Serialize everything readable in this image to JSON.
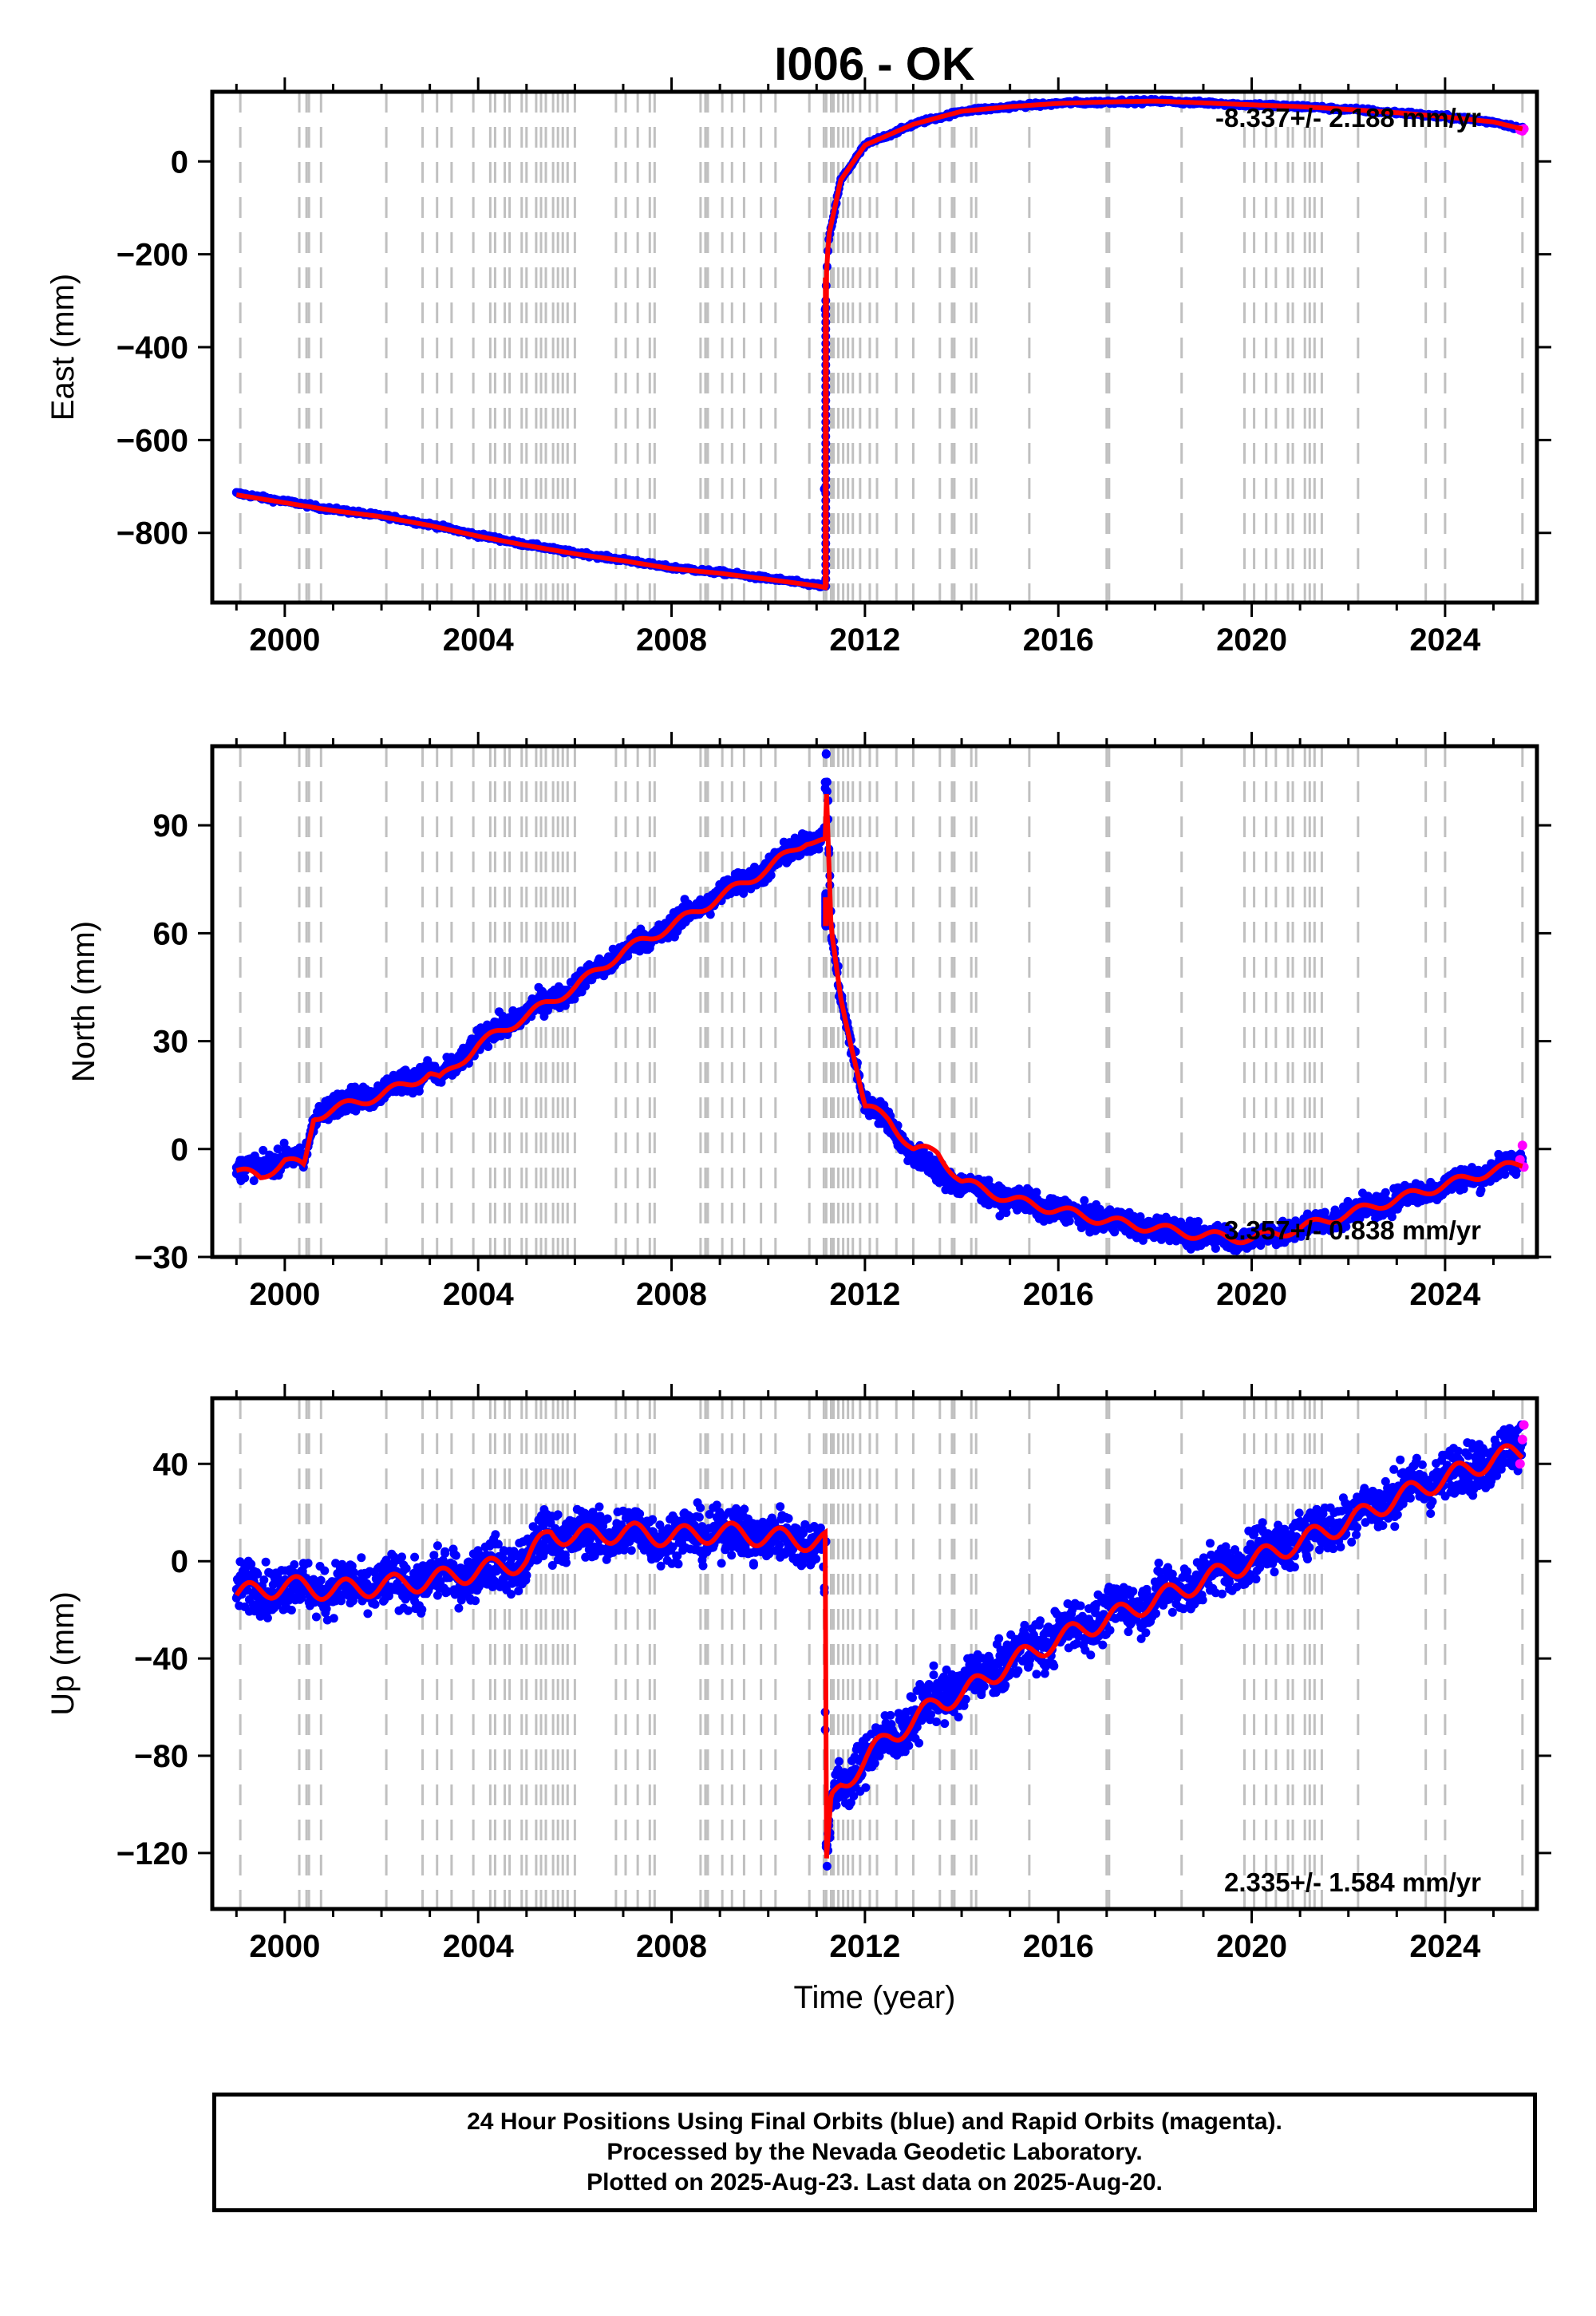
{
  "title": "I006 - OK",
  "xlabel": "Time (year)",
  "colors": {
    "final_orbits": "#0000ff",
    "rapid_orbits": "#ff00ff",
    "model": "#ff0000",
    "event_lines": "#c0c0c0",
    "frame": "#000000"
  },
  "chart_data": [
    {
      "type": "scatter",
      "component": "east",
      "ylabel": "East (mm)",
      "xlim": [
        1998.5,
        2025.9
      ],
      "ylim": [
        -950,
        150
      ],
      "xticks": [
        2000,
        2004,
        2008,
        2012,
        2016,
        2020,
        2024
      ],
      "yticks": [
        -800,
        -600,
        -400,
        -200,
        0
      ],
      "grid": false,
      "rate_label": "-8.337+/- 2.188 mm/yr",
      "rate_label_position": "top-right",
      "series": [
        {
          "role": "final-orbits",
          "color": "#0000ff",
          "x": [
            1999.0,
            2000.0,
            2001.0,
            2002.0,
            2003.0,
            2004.0,
            2005.0,
            2006.0,
            2007.0,
            2008.0,
            2009.0,
            2010.0,
            2011.0,
            2011.15,
            2011.18,
            2011.25,
            2011.5,
            2012.0,
            2013.0,
            2014.0,
            2015.0,
            2016.0,
            2017.0,
            2018.0,
            2019.0,
            2020.0,
            2021.0,
            2022.0,
            2023.0,
            2024.0,
            2025.0,
            2025.6
          ],
          "y": [
            -715,
            -732,
            -750,
            -763,
            -782,
            -805,
            -825,
            -843,
            -858,
            -875,
            -885,
            -898,
            -912,
            -915,
            -300,
            -170,
            -40,
            35,
            80,
            108,
            118,
            125,
            128,
            130,
            126,
            122,
            118,
            112,
            105,
            96,
            85,
            70
          ]
        },
        {
          "role": "rapid-orbits",
          "color": "#ff00ff",
          "x": [
            2025.55,
            2025.6,
            2025.63
          ],
          "y": [
            68,
            66,
            70
          ]
        },
        {
          "role": "model",
          "color": "#ff0000",
          "x": [
            1999.0,
            2000.0,
            2001.0,
            2002.0,
            2003.0,
            2004.0,
            2005.0,
            2006.0,
            2007.0,
            2008.0,
            2009.0,
            2010.0,
            2011.0,
            2011.19,
            2011.2,
            2011.25,
            2011.5,
            2012.0,
            2013.0,
            2014.0,
            2015.0,
            2016.0,
            2017.0,
            2018.0,
            2019.0,
            2020.0,
            2021.0,
            2022.0,
            2023.0,
            2024.0,
            2025.0,
            2025.6
          ],
          "y": [
            -718,
            -735,
            -752,
            -765,
            -784,
            -807,
            -827,
            -845,
            -860,
            -877,
            -887,
            -900,
            -914,
            -918,
            -250,
            -160,
            -40,
            35,
            80,
            108,
            118,
            125,
            128,
            130,
            126,
            122,
            118,
            112,
            105,
            96,
            85,
            70
          ]
        }
      ]
    },
    {
      "type": "scatter",
      "component": "north",
      "ylabel": "North (mm)",
      "xlim": [
        1998.5,
        2025.9
      ],
      "ylim": [
        -30,
        112
      ],
      "xticks": [
        2000,
        2004,
        2008,
        2012,
        2016,
        2020,
        2024
      ],
      "yticks": [
        -30,
        0,
        30,
        60,
        90
      ],
      "grid": false,
      "rate_label": "3.357+/- 0.838 mm/yr",
      "rate_label_position": "bottom-right",
      "series": [
        {
          "role": "final-orbits",
          "color": "#0000ff",
          "x": [
            1999.0,
            1999.5,
            2000.0,
            2000.4,
            2000.6,
            2001.0,
            2002.0,
            2003.0,
            2003.2,
            2004.0,
            2005.0,
            2006.0,
            2007.0,
            2008.0,
            2009.0,
            2010.0,
            2010.8,
            2011.15,
            2011.2,
            2011.3,
            2011.5,
            2011.8,
            2012.0,
            2012.5,
            2013.0,
            2014.0,
            2015.0,
            2016.0,
            2017.0,
            2018.0,
            2019.0,
            2020.0,
            2021.0,
            2022.0,
            2023.0,
            2024.0,
            2025.0,
            2025.6
          ],
          "y": [
            -6,
            -5,
            -2,
            -4,
            9,
            12,
            16,
            22,
            19,
            30,
            38,
            45,
            55,
            62,
            71,
            78,
            86,
            86,
            110,
            60,
            42,
            25,
            12,
            8,
            -2,
            -10,
            -14,
            -17,
            -20,
            -22,
            -24,
            -25,
            -22,
            -18,
            -14,
            -10,
            -6,
            -3
          ]
        },
        {
          "role": "rapid-orbits",
          "color": "#ff00ff",
          "x": [
            2025.55,
            2025.6,
            2025.63
          ],
          "y": [
            -3,
            1,
            -5
          ]
        },
        {
          "role": "model",
          "color": "#ff0000",
          "x": [
            1999.0,
            1999.5,
            2000.0,
            2000.4,
            2000.6,
            2001.0,
            2002.0,
            2003.0,
            2003.2,
            2004.0,
            2005.0,
            2006.0,
            2007.0,
            2008.0,
            2009.0,
            2010.0,
            2010.8,
            2011.19,
            2011.2,
            2011.3,
            2011.5,
            2011.8,
            2012.0,
            2012.5,
            2013.0,
            2013.5,
            2014.0,
            2015.0,
            2016.0,
            2017.0,
            2018.0,
            2019.0,
            2020.0,
            2021.0,
            2022.0,
            2023.0,
            2024.0,
            2025.0,
            2025.6
          ],
          "y": [
            -6,
            -8,
            -3,
            -5,
            9,
            11,
            15,
            21,
            19,
            29,
            37,
            45,
            55,
            62,
            70,
            78,
            86,
            85,
            100,
            60,
            42,
            25,
            12,
            8,
            0,
            -1,
            -9,
            -14,
            -17,
            -20,
            -22,
            -24,
            -25,
            -22,
            -18,
            -14,
            -10,
            -6,
            -4
          ]
        }
      ]
    },
    {
      "type": "scatter",
      "component": "up",
      "ylabel": "Up (mm)",
      "xlim": [
        1998.5,
        2025.9
      ],
      "ylim": [
        -143,
        67
      ],
      "xticks": [
        2000,
        2004,
        2008,
        2012,
        2016,
        2020,
        2024
      ],
      "yticks": [
        -120,
        -80,
        -40,
        0,
        40
      ],
      "grid": false,
      "rate_label": "2.335+/- 1.584 mm/yr",
      "rate_label_position": "bottom-right",
      "series": [
        {
          "role": "final-orbits",
          "color": "#0000ff",
          "x": [
            1999.0,
            2000.0,
            2001.0,
            2002.0,
            2003.0,
            2004.0,
            2005.0,
            2005.5,
            2006.0,
            2007.0,
            2008.0,
            2009.0,
            2010.0,
            2011.0,
            2011.15,
            2011.2,
            2011.3,
            2011.5,
            2012.0,
            2012.5,
            2013.0,
            2013.5,
            2014.0,
            2015.0,
            2016.0,
            2017.0,
            2018.0,
            2019.0,
            2020.0,
            2021.0,
            2022.0,
            2023.0,
            2024.0,
            2025.0,
            2025.6
          ],
          "y": [
            -12,
            -10,
            -12,
            -10,
            -8,
            -4,
            0,
            12,
            10,
            12,
            10,
            12,
            10,
            8,
            8,
            -125,
            -100,
            -92,
            -82,
            -72,
            -66,
            -55,
            -52,
            -40,
            -30,
            -22,
            -15,
            -7,
            2,
            10,
            18,
            28,
            35,
            42,
            48
          ]
        },
        {
          "role": "rapid-orbits",
          "color": "#ff00ff",
          "x": [
            2025.55,
            2025.6,
            2025.63
          ],
          "y": [
            40,
            50,
            56
          ]
        },
        {
          "role": "model",
          "color": "#ff0000",
          "x": [
            1999.0,
            2000.0,
            2001.0,
            2002.0,
            2003.0,
            2004.0,
            2005.0,
            2005.5,
            2006.0,
            2007.0,
            2008.0,
            2009.0,
            2010.0,
            2011.0,
            2011.19,
            2011.2,
            2011.3,
            2011.5,
            2012.0,
            2012.5,
            2013.0,
            2013.5,
            2014.0,
            2015.0,
            2016.0,
            2017.0,
            2018.0,
            2019.0,
            2020.0,
            2021.0,
            2022.0,
            2023.0,
            2024.0,
            2025.0,
            2025.6
          ],
          "y": [
            -14,
            -10,
            -12,
            -10,
            -8,
            -4,
            0,
            12,
            10,
            12,
            10,
            12,
            10,
            8,
            8,
            -128,
            -100,
            -92,
            -82,
            -72,
            -66,
            -58,
            -55,
            -42,
            -32,
            -24,
            -16,
            -8,
            0,
            8,
            16,
            26,
            34,
            42,
            45
          ]
        }
      ]
    }
  ],
  "event_lines": [
    1999.08,
    2000.3,
    2000.45,
    2000.5,
    2000.75,
    2002.1,
    2002.85,
    2003.15,
    2003.45,
    2003.9,
    2004.25,
    2004.35,
    2004.55,
    2004.65,
    2004.9,
    2005.0,
    2005.2,
    2005.3,
    2005.4,
    2005.55,
    2005.65,
    2005.75,
    2005.85,
    2006.0,
    2006.85,
    2007.05,
    2007.3,
    2007.55,
    2007.65,
    2008.6,
    2008.7,
    2008.75,
    2009.05,
    2009.25,
    2009.5,
    2009.85,
    2010.15,
    2010.85,
    2011.15,
    2011.2,
    2011.3,
    2011.35,
    2011.45,
    2011.55,
    2011.65,
    2011.75,
    2011.9,
    2012.1,
    2012.25,
    2012.65,
    2013.0,
    2013.55,
    2013.8,
    2013.85,
    2014.2,
    2014.3,
    2015.4,
    2017.0,
    2017.05,
    2018.55,
    2019.85,
    2020.05,
    2020.3,
    2020.5,
    2020.75,
    2020.85,
    2021.1,
    2021.2,
    2021.3,
    2021.45,
    2022.2,
    2023.6,
    2024.0,
    2025.6
  ],
  "footer": {
    "line1": "24 Hour Positions Using Final Orbits (blue) and Rapid Orbits (magenta).",
    "line2": "Processed by the Nevada Geodetic Laboratory.",
    "line3": "Plotted on 2025-Aug-23. Last data on 2025-Aug-20."
  }
}
